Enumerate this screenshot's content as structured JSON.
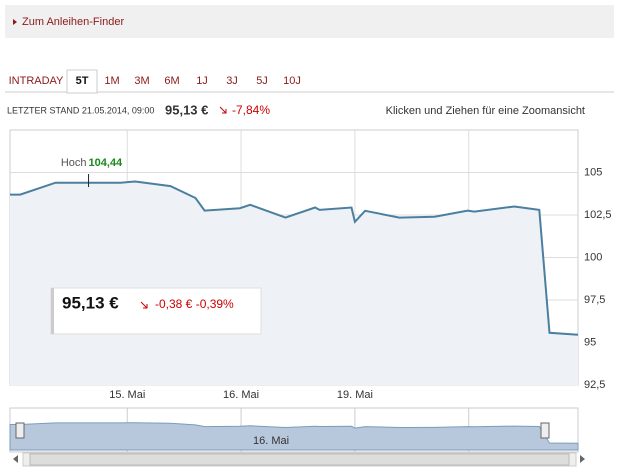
{
  "link": "Zum Anleihen-Finder",
  "tabs": [
    "INTRADAY",
    "5T",
    "1M",
    "3M",
    "6M",
    "1J",
    "3J",
    "5J",
    "10J"
  ],
  "status": {
    "label": "LETZTER STAND 21.05.2014, 09:00",
    "price": "95,13 €",
    "change": "-7,84%",
    "hint": "Klicken und Ziehen für eine Zoomansicht"
  },
  "tooltip": {
    "price": "95,13 €",
    "change": "-0,38 € -0,39%"
  },
  "chart_data": {
    "type": "line",
    "x": [
      -0.03,
      0.06,
      0.37,
      0.66,
      0.94,
      1.07,
      1.38,
      1.6,
      1.68,
      1.99,
      2.08,
      2.39,
      2.65,
      2.69,
      2.97,
      3.0,
      3.09,
      3.39,
      3.7,
      3.99,
      4.05,
      4.4,
      4.62,
      4.71,
      4.96
    ],
    "series": [
      {
        "color": "#4a7fa0",
        "values": [
          103.7,
          103.7,
          104.4,
          104.4,
          104.4,
          104.47,
          104.2,
          103.5,
          102.76,
          102.9,
          103.1,
          102.35,
          102.94,
          102.8,
          102.94,
          102.1,
          102.75,
          102.35,
          102.4,
          102.76,
          102.7,
          103.0,
          102.8,
          95.57,
          95.45
        ]
      }
    ],
    "xlim": [
      -0.03,
      4.96
    ],
    "xticks": [
      {
        "value": 1,
        "label": "15. Mai"
      },
      {
        "value": 2,
        "label": "16. Mai"
      },
      {
        "value": 3,
        "label": "19. Mai"
      },
      {
        "value": 4,
        "label": null
      }
    ],
    "ylim": [
      92.5,
      107.5
    ],
    "yticks": [
      {
        "value": 92.5,
        "label": "92,5"
      },
      95,
      {
        "value": 97.5,
        "label": "97,5"
      },
      100,
      {
        "value": 102.5,
        "label": "102,5"
      },
      105
    ],
    "annotation": {
      "text": "Hoch",
      "value_label": "104,44",
      "x": 0.66,
      "value": 104.44
    },
    "grid": true
  }
}
